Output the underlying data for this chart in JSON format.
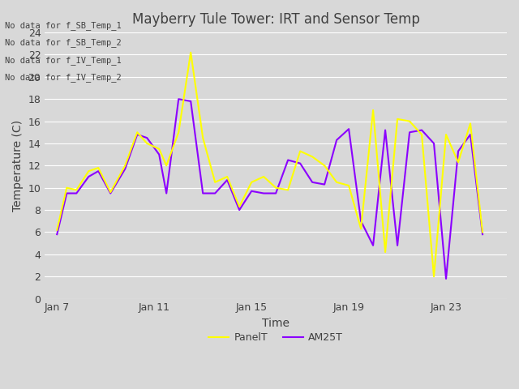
{
  "title": "Mayberry Tule Tower: IRT and Sensor Temp",
  "xlabel": "Time",
  "ylabel": "Temperature (C)",
  "ylim": [
    0,
    24
  ],
  "yticks": [
    0,
    2,
    4,
    6,
    8,
    10,
    12,
    14,
    16,
    18,
    20,
    22,
    24
  ],
  "background_color": "#d8d8d8",
  "no_data_texts": [
    "No data for f_SB_Temp_1",
    "No data for f_SB_Temp_2",
    "No data for f_IV_Temp_1",
    "No data for f_IV_Temp_2"
  ],
  "legend_labels": [
    "PanelT",
    "AM25T"
  ],
  "legend_colors": [
    "#ffff00",
    "#8b00ff"
  ],
  "panel_t_x": [
    7.0,
    7.4,
    7.8,
    8.3,
    8.7,
    9.2,
    9.8,
    10.3,
    10.7,
    11.2,
    11.5,
    12.0,
    12.5,
    13.0,
    13.5,
    14.0,
    14.5,
    15.0,
    15.5,
    16.0,
    16.5,
    17.0,
    17.5,
    18.0,
    18.5,
    19.0,
    19.5,
    20.0,
    20.5,
    21.0,
    21.5,
    22.0,
    22.5,
    23.0,
    23.5,
    24.0,
    24.5
  ],
  "panel_t_y": [
    6.2,
    10.0,
    9.8,
    11.5,
    11.8,
    9.6,
    12.0,
    15.0,
    14.0,
    13.5,
    12.0,
    15.0,
    22.2,
    14.5,
    10.5,
    11.0,
    8.3,
    10.5,
    11.0,
    10.0,
    9.8,
    13.3,
    12.8,
    12.0,
    10.5,
    10.2,
    6.3,
    17.0,
    4.2,
    16.2,
    16.0,
    14.8,
    2.0,
    14.8,
    12.3,
    15.8,
    6.0
  ],
  "am25t_x": [
    7.0,
    7.4,
    7.8,
    8.3,
    8.7,
    9.2,
    9.8,
    10.3,
    10.7,
    11.2,
    11.5,
    12.0,
    12.5,
    13.0,
    13.5,
    14.0,
    14.5,
    15.0,
    15.5,
    16.0,
    16.5,
    17.0,
    17.5,
    18.0,
    18.5,
    19.0,
    19.5,
    20.0,
    20.5,
    21.0,
    21.5,
    22.0,
    22.5,
    23.0,
    23.5,
    24.0,
    24.5
  ],
  "am25t_y": [
    5.8,
    9.5,
    9.5,
    11.0,
    11.5,
    9.5,
    11.7,
    14.8,
    14.5,
    13.0,
    9.5,
    18.0,
    17.8,
    9.5,
    9.5,
    10.7,
    8.0,
    9.7,
    9.5,
    9.5,
    12.5,
    12.2,
    10.5,
    10.3,
    14.3,
    15.3,
    7.0,
    4.8,
    15.2,
    4.8,
    15.0,
    15.2,
    14.0,
    1.8,
    13.3,
    14.8,
    5.8
  ],
  "xtick_labels": [
    "Jan 7",
    "Jan 11",
    "Jan 15",
    "Jan 19",
    "Jan 23"
  ],
  "xtick_positions": [
    7,
    11,
    15,
    19,
    23
  ],
  "xlim": [
    6.5,
    25.5
  ]
}
